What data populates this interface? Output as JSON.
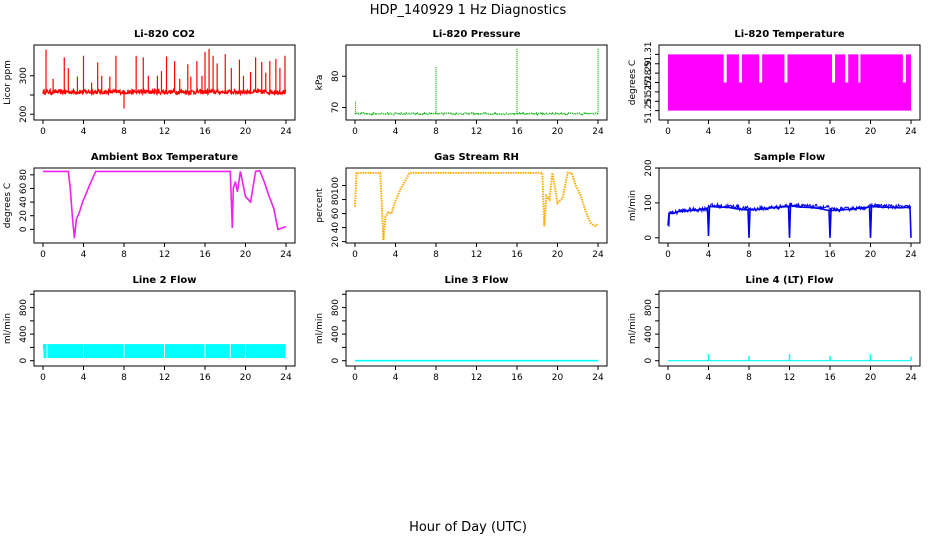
{
  "figure": {
    "title": "HDP_140929  1 Hz Diagnostics",
    "xlabel": "Hour of Day (UTC)"
  },
  "chart_data": [
    {
      "id": "co2",
      "type": "line",
      "title": "Li-820 CO2",
      "ylabel": "Licor ppm",
      "color": "#ff0000",
      "xlim": [
        0,
        24
      ],
      "xticks": [
        0,
        4,
        8,
        12,
        16,
        20,
        24
      ],
      "ylim": [
        185,
        380
      ],
      "yticks": [
        200,
        250,
        300
      ],
      "yticklabels": [
        "200",
        "",
        "300"
      ],
      "series": [
        {
          "name": "CO2",
          "baseline": 258,
          "noise": 6,
          "x": [
            0.3,
            1.0,
            2.1,
            2.5,
            3.4,
            4.0,
            4.8,
            5.4,
            5.8,
            6.6,
            7.2,
            8.0,
            9.2,
            9.9,
            10.4,
            11.3,
            11.7,
            12.2,
            13.0,
            13.5,
            14.3,
            14.6,
            15.2,
            15.7,
            16.0,
            16.4,
            16.8,
            17.2,
            18.0,
            18.6,
            19.4,
            19.8,
            20.5,
            21.0,
            21.6,
            22.0,
            22.4,
            23.0,
            23.4,
            23.9
          ],
          "y": [
            368,
            292,
            348,
            320,
            298,
            352,
            282,
            335,
            300,
            298,
            352,
            215,
            352,
            348,
            300,
            300,
            312,
            350,
            338,
            292,
            330,
            298,
            338,
            300,
            362,
            370,
            352,
            332,
            356,
            320,
            342,
            300,
            310,
            348,
            336,
            308,
            338,
            344,
            320,
            352
          ]
        }
      ]
    },
    {
      "id": "pressure",
      "type": "line",
      "title": "Li-820 Pressure",
      "ylabel": "kPa",
      "color": "#00b000",
      "xlim": [
        0,
        24
      ],
      "xticks": [
        0,
        4,
        8,
        12,
        16,
        20,
        24
      ],
      "ylim": [
        66,
        90
      ],
      "yticks": [
        70,
        80
      ],
      "yticklabels": [
        "70",
        "80"
      ],
      "series": [
        {
          "name": "Pressure",
          "baseline": 68,
          "noise": 0.25,
          "x": [
            0.05,
            8.0,
            16.0,
            24.0
          ],
          "y": [
            72,
            83,
            89,
            89
          ]
        }
      ]
    },
    {
      "id": "licor_temp",
      "type": "bar",
      "title": "Li-820 Temperature",
      "ylabel": "degrees C",
      "color": "#ff00ff",
      "xlim": [
        0,
        24
      ],
      "xticks": [
        0,
        4,
        8,
        12,
        16,
        20,
        24
      ],
      "ylim": [
        51.24,
        51.32
      ],
      "yticks": [
        51.25,
        51.26,
        51.27,
        51.28,
        51.29,
        51.3,
        51.31
      ],
      "yticklabels": [
        "51.25",
        "",
        "51.27",
        "51.28",
        "51.29",
        "",
        "51.31"
      ],
      "series": [
        {
          "name": "Temperature",
          "low": 51.25,
          "high_main": 51.31,
          "high_alt": 51.28,
          "x": [
            0,
            5.5,
            5.8,
            7.0,
            7.3,
            9.0,
            9.3,
            11.5,
            11.8,
            16.2,
            16.5,
            17.5,
            17.8,
            18.8,
            19.0,
            23.2,
            23.5,
            24.0
          ],
          "y": [
            51.31,
            51.28,
            51.31,
            51.28,
            51.31,
            51.28,
            51.31,
            51.28,
            51.31,
            51.28,
            51.31,
            51.28,
            51.31,
            51.28,
            51.31,
            51.28,
            51.31,
            51.28
          ]
        }
      ]
    },
    {
      "id": "ambient_temp",
      "type": "line",
      "title": "Ambient Box Temperature",
      "ylabel": "degrees C",
      "color": "#ee22ee",
      "xlim": [
        0,
        24
      ],
      "xticks": [
        0,
        4,
        8,
        12,
        16,
        20,
        24
      ],
      "ylim": [
        -20,
        90
      ],
      "yticks": [
        0,
        20,
        40,
        60,
        80
      ],
      "yticklabels": [
        "0",
        "20",
        "40",
        "60",
        "80"
      ],
      "series": [
        {
          "name": "Ambient",
          "x": [
            0,
            2.5,
            2.7,
            2.9,
            3.1,
            3.3,
            3.6,
            3.9,
            4.2,
            4.6,
            5.0,
            5.2,
            18.5,
            18.7,
            18.8,
            19.0,
            19.2,
            19.5,
            20.0,
            20.5,
            21.0,
            21.4,
            21.8,
            22.3,
            22.8,
            23.2,
            23.6,
            24.0
          ],
          "y": [
            85,
            85,
            60,
            18,
            -13,
            15,
            25,
            40,
            50,
            65,
            78,
            85,
            85,
            2,
            60,
            70,
            55,
            85,
            48,
            40,
            85,
            86,
            72,
            50,
            30,
            0,
            2,
            4
          ]
        }
      ]
    },
    {
      "id": "rh",
      "type": "line",
      "title": "Gas Stream RH",
      "ylabel": "percent",
      "color": "#ffaa00",
      "xlim": [
        0,
        24
      ],
      "xticks": [
        0,
        4,
        8,
        12,
        16,
        20,
        24
      ],
      "ylim": [
        18,
        125
      ],
      "yticks": [
        20,
        40,
        60,
        80,
        100
      ],
      "yticklabels": [
        "20",
        "40",
        "60",
        "80",
        "100"
      ],
      "series": [
        {
          "name": "RH",
          "x": [
            0,
            0.15,
            0.3,
            2.5,
            2.8,
            3.0,
            3.3,
            3.6,
            4.0,
            4.5,
            5.0,
            5.4,
            18.5,
            18.7,
            18.9,
            19.2,
            19.5,
            20.0,
            20.5,
            21.0,
            21.4,
            21.8,
            22.3,
            22.8,
            23.3,
            23.7,
            24.0
          ],
          "y": [
            70,
            118,
            118,
            118,
            22,
            55,
            62,
            60,
            78,
            95,
            108,
            118,
            118,
            42,
            85,
            80,
            118,
            75,
            82,
            118,
            118,
            100,
            85,
            62,
            46,
            42,
            45
          ]
        }
      ]
    },
    {
      "id": "sample_flow",
      "type": "line",
      "title": "Sample Flow",
      "ylabel": "ml/min",
      "color": "#0000ee",
      "xlim": [
        0,
        24
      ],
      "xticks": [
        0,
        4,
        8,
        12,
        16,
        20,
        24
      ],
      "ylim": [
        -15,
        200
      ],
      "yticks": [
        0,
        100,
        200
      ],
      "yticklabels": [
        "0",
        "100",
        "200"
      ],
      "series": [
        {
          "name": "Flow",
          "x": [
            0,
            0.1,
            0.5,
            1,
            2,
            3,
            3.9,
            4.0,
            4.1,
            5,
            6,
            7,
            7.9,
            8.0,
            8.1,
            9,
            10,
            11,
            11.9,
            12.0,
            12.1,
            13,
            14,
            15,
            15.9,
            16.0,
            16.1,
            17,
            18,
            19,
            19.9,
            20.0,
            20.1,
            21,
            22,
            23,
            23.9,
            24.0
          ],
          "y": [
            35,
            70,
            70,
            75,
            78,
            80,
            85,
            5,
            90,
            88,
            87,
            82,
            80,
            0,
            80,
            82,
            85,
            88,
            90,
            0,
            92,
            88,
            87,
            84,
            78,
            0,
            78,
            80,
            82,
            85,
            88,
            0,
            90,
            88,
            87,
            86,
            88,
            0
          ]
        }
      ]
    },
    {
      "id": "line2_flow",
      "type": "bar",
      "title": "Line 2 Flow",
      "ylabel": "ml/min",
      "color": "#00ffff",
      "xlim": [
        0,
        24
      ],
      "xticks": [
        0,
        4,
        8,
        12,
        16,
        20,
        24
      ],
      "ylim": [
        -80,
        1050
      ],
      "yticks": [
        0,
        200,
        400,
        600,
        800,
        1000
      ],
      "yticklabels": [
        "0",
        "",
        "400",
        "",
        "800",
        ""
      ],
      "series": [
        {
          "name": "Line 2",
          "low": 40,
          "high": 250,
          "x": [
            0,
            0.4,
            4.0,
            8.0,
            12.0,
            16.0,
            18.5,
            20.0,
            24.0
          ],
          "y": [
            170,
            240,
            255,
            250,
            250,
            250,
            250,
            255,
            250
          ]
        }
      ]
    },
    {
      "id": "line3_flow",
      "type": "line",
      "title": "Line 3 Flow",
      "ylabel": "ml/min",
      "color": "#00ffff",
      "xlim": [
        0,
        24
      ],
      "xticks": [
        0,
        4,
        8,
        12,
        16,
        20,
        24
      ],
      "ylim": [
        -80,
        1050
      ],
      "yticks": [
        0,
        200,
        400,
        600,
        800,
        1000
      ],
      "yticklabels": [
        "0",
        "",
        "400",
        "",
        "800",
        ""
      ],
      "series": [
        {
          "name": "Line 3",
          "x": [
            0,
            24
          ],
          "y": [
            0,
            0
          ]
        }
      ]
    },
    {
      "id": "line4_flow",
      "type": "line",
      "title": "Line 4 (LT) Flow",
      "ylabel": "ml/min",
      "color": "#00ffff",
      "xlim": [
        0,
        24
      ],
      "xticks": [
        0,
        4,
        8,
        12,
        16,
        20,
        24
      ],
      "ylim": [
        -80,
        1050
      ],
      "yticks": [
        0,
        200,
        400,
        600,
        800,
        1000
      ],
      "yticklabels": [
        "0",
        "",
        "400",
        "",
        "800",
        ""
      ],
      "series": [
        {
          "name": "Line 4",
          "baseline": 0,
          "x": [
            4.0,
            8.0,
            12.0,
            16.0,
            20.0,
            24.0
          ],
          "y": [
            100,
            70,
            100,
            70,
            100,
            60
          ]
        }
      ]
    }
  ]
}
